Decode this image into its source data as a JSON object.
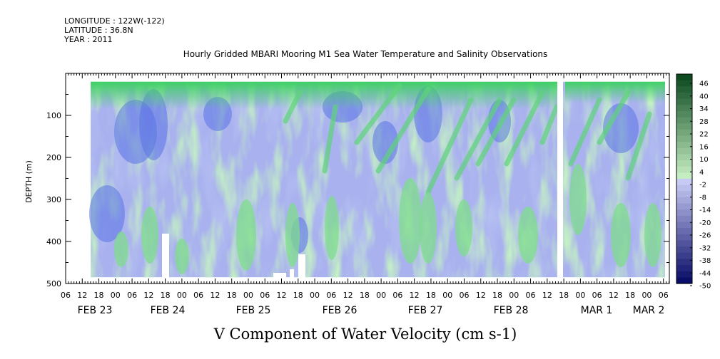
{
  "header": {
    "longitude": "LONGITUDE : 122W(-122)",
    "latitude": "LATITUDE : 36.8N",
    "year": "YEAR : 2011"
  },
  "chart_data": {
    "type": "heatmap",
    "title": "Hourly Gridded MBARI Mooring M1 Sea Water Temperature and Salinity Observations",
    "xlabel": "V Component of Water Velocity (cm s-1)",
    "ylabel": "DEPTH (m)",
    "ylim": [
      500,
      0
    ],
    "y_ticks": [
      100,
      200,
      300,
      400,
      500
    ],
    "x_hour_labels": [
      "06",
      "12",
      "18",
      "00",
      "06",
      "12",
      "18",
      "00",
      "06",
      "12",
      "18",
      "00",
      "06",
      "12",
      "18",
      "00",
      "06",
      "12",
      "18",
      "00",
      "06",
      "12",
      "18",
      "00",
      "06",
      "12",
      "18",
      "00",
      "06",
      "12",
      "18",
      "00",
      "06",
      "12",
      "18",
      "00",
      "06"
    ],
    "x_day_labels": [
      "FEB 23",
      "FEB 24",
      "FEB 25",
      "FEB 26",
      "FEB 27",
      "FEB 28",
      "MAR  1",
      "MAR  2"
    ],
    "colorbar_labels": [
      "46",
      "40",
      "34",
      "28",
      "22",
      "16",
      "10",
      "4",
      "-2",
      "-8",
      "-14",
      "-20",
      "-26",
      "-32",
      "-38",
      "-44",
      "-50"
    ],
    "colorbar_range": [
      -50,
      52
    ],
    "colors": {
      "strong_positive": "#0a4a1f",
      "positive": "#2ec04f",
      "weak_positive": "#a8e8a8",
      "weak_negative": "#b8bcf0",
      "negative": "#3a52e0",
      "strong_negative": "#060a6a"
    },
    "data_gaps": [
      "between Feb 28 22:00 and Mar 1 01:00 (all depths)",
      "near-bottom gaps Feb 24 and Feb 25-26"
    ]
  }
}
